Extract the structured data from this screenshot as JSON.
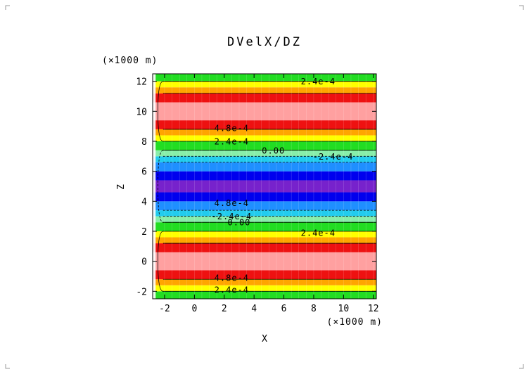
{
  "chart_data": {
    "type": "heatmap",
    "subtype": "filled-contour",
    "title": "DVelX/DZ",
    "xlabel": "X",
    "ylabel": "Z",
    "x_unit": "(×1000 m)",
    "y_unit": "(×1000 m)",
    "xlim": [
      -2.8,
      12.2
    ],
    "ylim": [
      -2.5,
      12.5
    ],
    "x_ticks": [
      "-2",
      "0",
      "2",
      "4",
      "6",
      "8",
      "10",
      "12"
    ],
    "y_ticks": [
      "-2",
      "0",
      "2",
      "4",
      "6",
      "8",
      "10",
      "12"
    ],
    "grid": false,
    "color_bands": [
      {
        "from": -2.5,
        "to": -2.0,
        "color": "#22dd22"
      },
      {
        "from": -2.0,
        "to": -1.6,
        "color": "#ffff00"
      },
      {
        "from": -1.6,
        "to": -1.2,
        "color": "#ffa500"
      },
      {
        "from": -1.2,
        "to": -0.6,
        "color": "#ee1111"
      },
      {
        "from": -0.6,
        "to": 0.6,
        "color": "#ffa0a0"
      },
      {
        "from": 0.6,
        "to": 1.2,
        "color": "#ee1111"
      },
      {
        "from": 1.2,
        "to": 1.6,
        "color": "#ffa500"
      },
      {
        "from": 1.6,
        "to": 2.0,
        "color": "#ffff00"
      },
      {
        "from": 2.0,
        "to": 2.6,
        "color": "#22dd22"
      },
      {
        "from": 2.6,
        "to": 3.0,
        "color": "#88eeaa"
      },
      {
        "from": 3.0,
        "to": 3.4,
        "color": "#22ccee"
      },
      {
        "from": 3.4,
        "to": 4.0,
        "color": "#1f8fff"
      },
      {
        "from": 4.0,
        "to": 4.6,
        "color": "#0000ee"
      },
      {
        "from": 4.6,
        "to": 5.4,
        "color": "#7722cc"
      },
      {
        "from": 5.4,
        "to": 6.0,
        "color": "#0000ee"
      },
      {
        "from": 6.0,
        "to": 6.6,
        "color": "#1f8fff"
      },
      {
        "from": 6.6,
        "to": 7.0,
        "color": "#22ccee"
      },
      {
        "from": 7.0,
        "to": 7.4,
        "color": "#88eeaa"
      },
      {
        "from": 7.4,
        "to": 8.0,
        "color": "#22dd22"
      },
      {
        "from": 8.0,
        "to": 8.4,
        "color": "#ffff00"
      },
      {
        "from": 8.4,
        "to": 8.8,
        "color": "#ffa500"
      },
      {
        "from": 8.8,
        "to": 9.4,
        "color": "#ee1111"
      },
      {
        "from": 9.4,
        "to": 10.6,
        "color": "#ffa0a0"
      },
      {
        "from": 10.6,
        "to": 11.2,
        "color": "#ee1111"
      },
      {
        "from": 11.2,
        "to": 11.6,
        "color": "#ffa500"
      },
      {
        "from": 11.6,
        "to": 12.0,
        "color": "#ffff00"
      },
      {
        "from": 12.0,
        "to": 12.5,
        "color": "#22dd22"
      }
    ],
    "contour_lines": [
      {
        "z": -2.0,
        "dashed": false
      },
      {
        "z": -1.2,
        "dashed": false
      },
      {
        "z": 1.2,
        "dashed": false
      },
      {
        "z": 2.0,
        "dashed": false
      },
      {
        "z": 2.6,
        "dashed": false
      },
      {
        "z": 3.0,
        "dashed": true
      },
      {
        "z": 3.4,
        "dashed": true
      },
      {
        "z": 6.6,
        "dashed": true
      },
      {
        "z": 7.0,
        "dashed": true
      },
      {
        "z": 7.4,
        "dashed": false
      },
      {
        "z": 8.0,
        "dashed": false
      },
      {
        "z": 8.8,
        "dashed": false
      },
      {
        "z": 11.2,
        "dashed": false
      },
      {
        "z": 12.0,
        "dashed": false
      }
    ],
    "contour_labels": [
      {
        "text": "2.4e-4",
        "x": 8.3,
        "z": 12.0
      },
      {
        "text": "4.8e-4",
        "x": 2.5,
        "z": 8.9
      },
      {
        "text": "2.4e-4",
        "x": 2.5,
        "z": 8.0
      },
      {
        "text": "0.00",
        "x": 5.3,
        "z": 7.4
      },
      {
        "text": "-2.4e-4",
        "x": 9.3,
        "z": 7.0
      },
      {
        "text": "4.8e-4",
        "x": 2.5,
        "z": 3.9
      },
      {
        "text": "-2.4e-4",
        "x": 2.5,
        "z": 3.0
      },
      {
        "text": "0.00",
        "x": 3.0,
        "z": 2.6
      },
      {
        "text": "2.4e-4",
        "x": 8.3,
        "z": 1.9
      },
      {
        "text": "4.8e-4",
        "x": 2.5,
        "z": -1.1
      },
      {
        "text": "2.4e-4",
        "x": 2.5,
        "z": -1.9
      }
    ]
  }
}
